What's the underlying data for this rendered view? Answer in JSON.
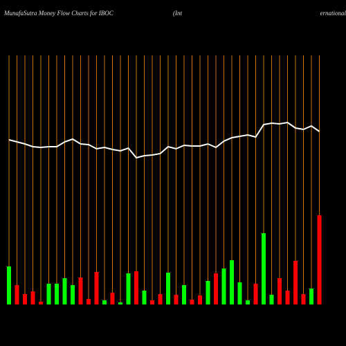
{
  "chart_data": {
    "type": "bar",
    "title": "MunafaSutra  Money Flow  Charts for IBOC",
    "title_middle": "(Int",
    "title_right": "ernational",
    "values": [
      55,
      28,
      15,
      19,
      4,
      30,
      30,
      38,
      28,
      39,
      8,
      47,
      6,
      17,
      3,
      45,
      48,
      20,
      6,
      15,
      46,
      14,
      28,
      7,
      13,
      34,
      45,
      52,
      64,
      32,
      6,
      30,
      103,
      14,
      38,
      20,
      63,
      15,
      23,
      129
    ],
    "colors": [
      "#00ff00",
      "#ff0000",
      "#ff0000",
      "#ff0000",
      "#ff0000",
      "#00ff00",
      "#00ff00",
      "#00ff00",
      "#00ff00",
      "#ff0000",
      "#ff0000",
      "#ff0000",
      "#00ff00",
      "#ff0000",
      "#00ff00",
      "#00ff00",
      "#ff0000",
      "#00ff00",
      "#ff0000",
      "#ff0000",
      "#00ff00",
      "#ff0000",
      "#00ff00",
      "#ff0000",
      "#ff0000",
      "#00ff00",
      "#ff0000",
      "#00ff00",
      "#00ff00",
      "#00ff00",
      "#00ff00",
      "#ff0000",
      "#00ff00",
      "#00ff00",
      "#ff0000",
      "#ff0000",
      "#ff0000",
      "#ff0000",
      "#00ff00",
      "#ff0000"
    ],
    "line_values": [
      238,
      235,
      232,
      228,
      227,
      228,
      228,
      235,
      239,
      232,
      231,
      225,
      227,
      224,
      222,
      226,
      212,
      215,
      216,
      218,
      228,
      225,
      230,
      229,
      229,
      232,
      227,
      236,
      241,
      243,
      245,
      242,
      260,
      262,
      261,
      263,
      255,
      253,
      258,
      250
    ],
    "line_color": "#ffffff",
    "grid_color": "#c87010"
  }
}
